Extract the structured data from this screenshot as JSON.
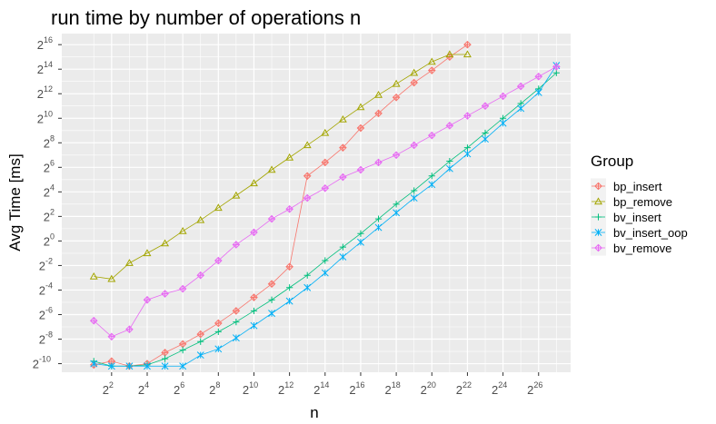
{
  "chart_data": {
    "type": "line",
    "title": "run time by number of operations n",
    "xlabel": "n",
    "ylabel": "Avg Time [ms]",
    "x_scale": "log2",
    "y_scale": "log2",
    "xlim_exponent": [
      -0.8,
      27.8
    ],
    "ylim_exponent": [
      -10.7,
      16.9
    ],
    "x_tick_exponents": [
      2,
      4,
      6,
      8,
      10,
      12,
      14,
      16,
      18,
      20,
      22,
      24,
      26
    ],
    "y_tick_exponents": [
      -10,
      -8,
      -6,
      -4,
      -2,
      0,
      2,
      4,
      6,
      8,
      10,
      12,
      14,
      16
    ],
    "tick_base": "2",
    "grid": true,
    "legend_title": "Group",
    "legend_position": "right",
    "series": [
      {
        "name": "bp_insert",
        "color": "#F8766D",
        "shape": "diamond-plus",
        "x_exponents": [
          1,
          2,
          3,
          4,
          5,
          6,
          7,
          8,
          9,
          10,
          11,
          12,
          13,
          14,
          15,
          16,
          17,
          18,
          19,
          20,
          21,
          22
        ],
        "y_exponents": [
          -10.1,
          -9.8,
          -10.2,
          -10.0,
          -9.1,
          -8.4,
          -7.6,
          -6.7,
          -5.7,
          -4.6,
          -3.5,
          -2.1,
          5.3,
          6.4,
          7.6,
          9.2,
          10.4,
          11.7,
          12.9,
          13.9,
          15.0,
          16.0
        ]
      },
      {
        "name": "bp_remove",
        "color": "#A3A500",
        "shape": "triangle",
        "x_exponents": [
          1,
          2,
          3,
          4,
          5,
          6,
          7,
          8,
          9,
          10,
          11,
          12,
          13,
          14,
          15,
          16,
          17,
          18,
          19,
          20,
          21,
          22
        ],
        "y_exponents": [
          -2.9,
          -3.1,
          -1.8,
          -1.0,
          -0.2,
          0.8,
          1.7,
          2.7,
          3.7,
          4.7,
          5.8,
          6.8,
          7.8,
          8.8,
          9.9,
          10.9,
          11.9,
          12.8,
          13.7,
          14.6,
          15.2,
          15.2
        ]
      },
      {
        "name": "bv_insert",
        "color": "#00BF7D",
        "shape": "plus",
        "x_exponents": [
          1,
          2,
          3,
          4,
          5,
          6,
          7,
          8,
          9,
          10,
          11,
          12,
          13,
          14,
          15,
          16,
          17,
          18,
          19,
          20,
          21,
          22,
          23,
          24,
          25,
          26,
          27
        ],
        "y_exponents": [
          -9.8,
          -10.2,
          -10.2,
          -10.1,
          -9.6,
          -8.9,
          -8.2,
          -7.4,
          -6.6,
          -5.7,
          -4.8,
          -3.8,
          -2.8,
          -1.6,
          -0.5,
          0.6,
          1.8,
          3.0,
          4.1,
          5.3,
          6.5,
          7.6,
          8.8,
          10.0,
          11.2,
          12.4,
          13.7
        ]
      },
      {
        "name": "bv_insert_oop",
        "color": "#00B0F6",
        "shape": "asterisk",
        "x_exponents": [
          1,
          2,
          3,
          4,
          5,
          6,
          7,
          8,
          9,
          10,
          11,
          12,
          13,
          14,
          15,
          16,
          17,
          18,
          19,
          20,
          21,
          22,
          23,
          24,
          25,
          26,
          27
        ],
        "y_exponents": [
          -10.0,
          -10.2,
          -10.2,
          -10.2,
          -10.2,
          -10.2,
          -9.3,
          -8.8,
          -7.9,
          -6.9,
          -5.9,
          -4.9,
          -3.8,
          -2.6,
          -1.3,
          -0.1,
          1.1,
          2.3,
          3.5,
          4.6,
          5.9,
          7.1,
          8.3,
          9.6,
          10.8,
          12.1,
          14.3
        ]
      },
      {
        "name": "bv_remove",
        "color": "#E76BF3",
        "shape": "diamond-plus",
        "x_exponents": [
          1,
          2,
          3,
          4,
          5,
          6,
          7,
          8,
          9,
          10,
          11,
          12,
          13,
          14,
          15,
          16,
          17,
          18,
          19,
          20,
          21,
          22,
          23,
          24,
          25,
          26,
          27
        ],
        "y_exponents": [
          -6.5,
          -7.8,
          -7.2,
          -4.8,
          -4.3,
          -3.9,
          -2.8,
          -1.6,
          -0.3,
          0.7,
          1.8,
          2.6,
          3.5,
          4.3,
          5.2,
          5.8,
          6.4,
          7.0,
          7.8,
          8.6,
          9.4,
          10.2,
          11.0,
          11.8,
          12.6,
          13.4,
          14.2
        ]
      }
    ]
  }
}
